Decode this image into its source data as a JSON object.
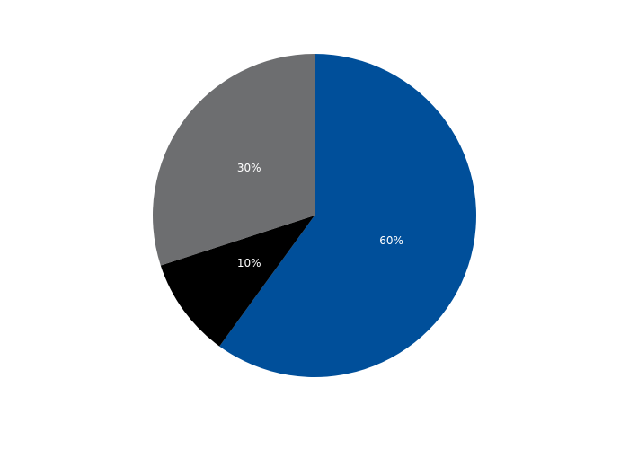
{
  "chart_data": {
    "type": "pie",
    "start": "top",
    "direction": "clockwise",
    "slices": [
      {
        "value": 60,
        "label": "60%",
        "color": "#004f9a"
      },
      {
        "value": 10,
        "label": "10%",
        "color": "#000000"
      },
      {
        "value": 30,
        "label": "30%",
        "color": "#6d6e70"
      }
    ]
  }
}
